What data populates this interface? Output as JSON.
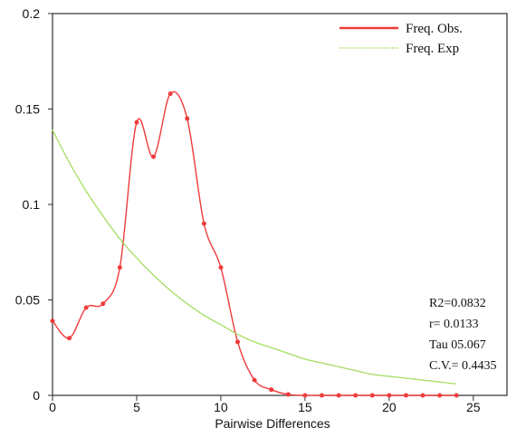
{
  "chart_data": {
    "type": "line",
    "title": "",
    "xlabel": "Pairwise Differences",
    "ylabel": "",
    "xlim": [
      0,
      27
    ],
    "ylim": [
      0,
      0.2
    ],
    "x_ticks": [
      "0",
      "5",
      "10",
      "15",
      "20",
      "25"
    ],
    "y_ticks": [
      "0",
      "0.05",
      "0.1",
      "0.15",
      "0.2"
    ],
    "grid": false,
    "legend_position": "top-right",
    "series": [
      {
        "name": "Freq. Obs.",
        "color": "#ef3b3b",
        "style": "solid",
        "markers": true,
        "x": [
          0,
          1,
          2,
          3,
          4,
          5,
          6,
          7,
          8,
          9,
          10,
          11,
          12,
          13,
          14,
          15,
          16,
          17,
          18,
          19,
          20,
          21,
          22,
          23,
          24
        ],
        "y": [
          0.039,
          0.03,
          0.046,
          0.048,
          0.067,
          0.143,
          0.125,
          0.158,
          0.145,
          0.09,
          0.067,
          0.028,
          0.008,
          0.003,
          0.0005,
          0,
          0,
          0,
          0,
          0,
          0,
          0,
          0,
          0,
          0
        ]
      },
      {
        "name": "Freq. Exp",
        "color": "#9ad94f",
        "style": "dotted",
        "markers": false,
        "x": [
          0,
          1,
          2,
          3,
          4,
          5,
          6,
          7,
          8,
          9,
          10,
          11,
          12,
          13,
          14,
          15,
          16,
          17,
          18,
          19,
          20,
          21,
          22,
          23,
          24
        ],
        "y": [
          0.139,
          0.122,
          0.107,
          0.094,
          0.082,
          0.072,
          0.063,
          0.055,
          0.048,
          0.042,
          0.037,
          0.032,
          0.028,
          0.025,
          0.022,
          0.019,
          0.017,
          0.015,
          0.013,
          0.011,
          0.01,
          0.009,
          0.008,
          0.007,
          0.006
        ]
      }
    ],
    "annotations": [
      "R2=0.0832",
      "r= 0.0133",
      "Tau 05.067",
      "C.V.= 0.4435"
    ]
  }
}
